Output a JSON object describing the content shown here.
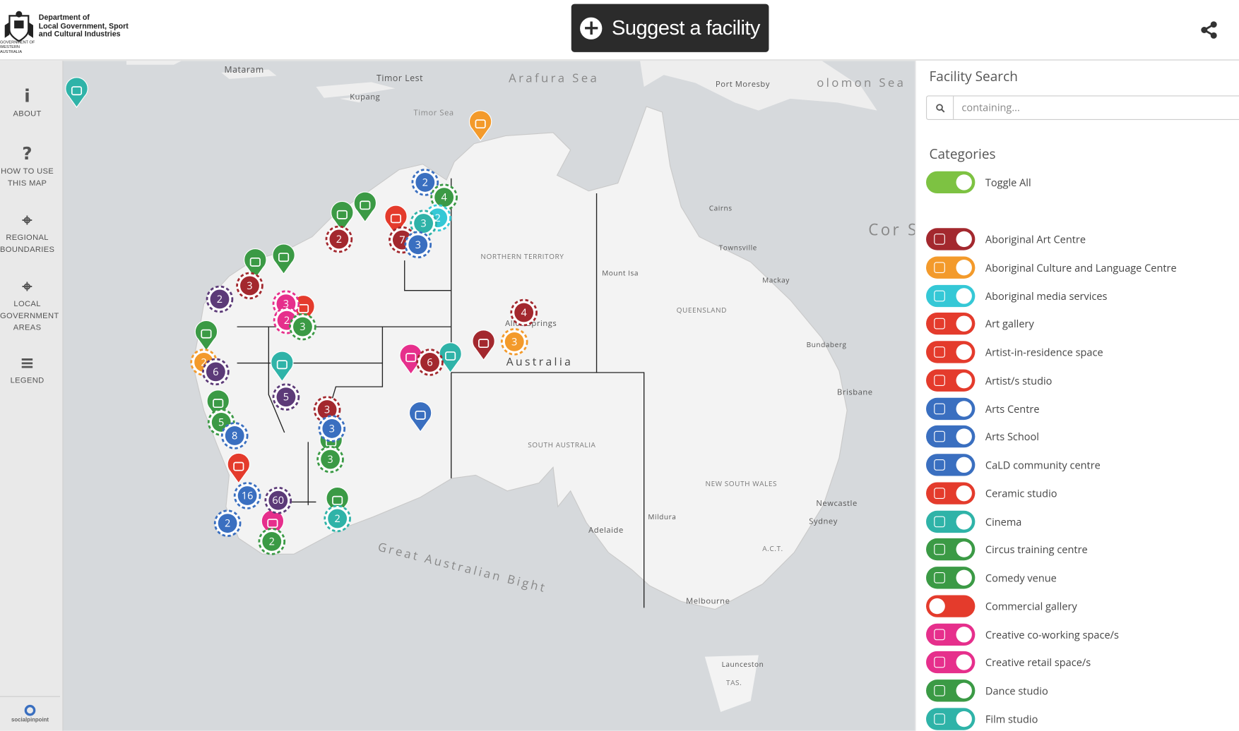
{
  "header": {
    "logo_lines": [
      "Department of",
      "Local Government, Sport",
      "and Cultural Industries"
    ],
    "government": "GOVERNMENT OF WESTERN AUSTRALIA",
    "button": "Suggest a facility"
  },
  "sidebar": {
    "items": [
      "ABOUT",
      "HOW TO USE THIS MAP",
      "REGIONAL BOUNDARIES",
      "LOCAL GOVERNMENT AREAS",
      "LEGEND"
    ],
    "footer": "socialpinpoint"
  },
  "map": {
    "labels": [
      "Mataram",
      "Kupang",
      "Timor Lest",
      "Timor Sea",
      "Arafura Sea",
      "Port Moresby",
      "olomon Sea",
      "Cairns",
      "Townsville",
      "Mount Isa",
      "Mackay",
      "NORTHERN TERRITORY",
      "QUEENSLAND",
      "Alice Springs",
      "Australia",
      "Bundaberg",
      "Brisbane",
      "SOUTH AUSTRALIA",
      "NEW SOUTH WALES",
      "Newcastle",
      "Sydney",
      "Mildura",
      "Adelaide",
      "Great Australian Bight",
      "Melbourne",
      "Launceston",
      "TAS.",
      "A.C.T.",
      "Cor Se"
    ],
    "clusters": [
      {
        "count": 2,
        "color": "#3a6fc0"
      },
      {
        "count": 4,
        "color": "#3b9a45"
      },
      {
        "count": 2,
        "color": "#35c8d6"
      },
      {
        "count": 3,
        "color": "#2fb3a8"
      },
      {
        "count": 7,
        "color": "#a3282e"
      },
      {
        "count": 3,
        "color": "#3a6fc0"
      },
      {
        "count": 2,
        "color": "#a3282e"
      },
      {
        "count": 3,
        "color": "#a3282e"
      },
      {
        "count": 2,
        "color": "#5c3a78"
      },
      {
        "count": 3,
        "color": "#e62f8c"
      },
      {
        "count": 2,
        "color": "#e62f8c"
      },
      {
        "count": 3,
        "color": "#3b9a45"
      },
      {
        "count": 2,
        "color": "#f39a2b"
      },
      {
        "count": 6,
        "color": "#5c3a78"
      },
      {
        "count": 5,
        "color": "#5c3a78"
      },
      {
        "count": 3,
        "color": "#a3282e"
      },
      {
        "count": 3,
        "color": "#3a6fc0"
      },
      {
        "count": 3,
        "color": "#3b9a45"
      },
      {
        "count": 5,
        "color": "#3b9a45"
      },
      {
        "count": 8,
        "color": "#3a6fc0"
      },
      {
        "count": 16,
        "color": "#3a6fc0"
      },
      {
        "count": 60,
        "color": "#5c3a78"
      },
      {
        "count": 2,
        "color": "#3a6fc0"
      },
      {
        "count": 2,
        "color": "#2fb3a8"
      },
      {
        "count": 2,
        "color": "#3b9a45"
      },
      {
        "count": 6,
        "color": "#a3282e"
      },
      {
        "count": 4,
        "color": "#a3282e"
      },
      {
        "count": 3,
        "color": "#f39a2b"
      }
    ]
  },
  "panel": {
    "title": "Facility Search",
    "placeholder": "containing...",
    "categories_title": "Categories",
    "toggle_all": "Toggle All",
    "categories": [
      {
        "name": "Aboriginal Art Centre",
        "color": "#a3282e",
        "enabled": true
      },
      {
        "name": "Aboriginal Culture and Language Centre",
        "color": "#f39a2b",
        "enabled": true
      },
      {
        "name": "Aboriginal media services",
        "color": "#35c8d6",
        "enabled": true
      },
      {
        "name": "Art gallery",
        "color": "#e43b2c",
        "enabled": true
      },
      {
        "name": "Artist-in-residence space",
        "color": "#e43b2c",
        "enabled": true
      },
      {
        "name": "Artist/s studio",
        "color": "#e43b2c",
        "enabled": true
      },
      {
        "name": "Arts Centre",
        "color": "#3a6fc0",
        "enabled": true
      },
      {
        "name": "Arts School",
        "color": "#3a6fc0",
        "enabled": true
      },
      {
        "name": "CaLD community centre",
        "color": "#3a6fc0",
        "enabled": true
      },
      {
        "name": "Ceramic studio",
        "color": "#e43b2c",
        "enabled": true
      },
      {
        "name": "Cinema",
        "color": "#2fb3a8",
        "enabled": true
      },
      {
        "name": "Circus training centre",
        "color": "#3b9a45",
        "enabled": true
      },
      {
        "name": "Comedy venue",
        "color": "#3b9a45",
        "enabled": true
      },
      {
        "name": "Commercial gallery",
        "color": "#e43b2c",
        "enabled": false
      },
      {
        "name": "Creative co-working space/s",
        "color": "#e62f8c",
        "enabled": true
      },
      {
        "name": "Creative retail space/s",
        "color": "#e62f8c",
        "enabled": true
      },
      {
        "name": "Dance studio",
        "color": "#3b9a45",
        "enabled": true
      },
      {
        "name": "Film studio",
        "color": "#2fb3a8",
        "enabled": true
      }
    ]
  }
}
